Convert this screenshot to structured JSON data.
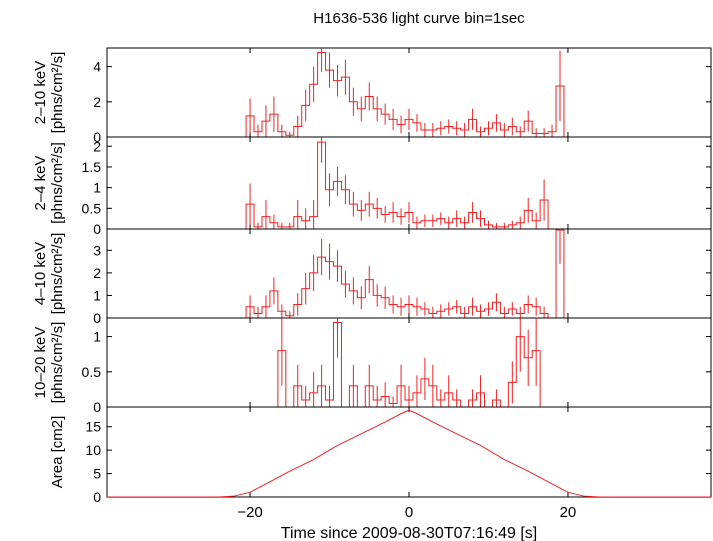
{
  "title": "H1636-536 light curve bin=1sec",
  "xlabel": "Time since 2009-08-30T07:16:49 [s]",
  "colors": {
    "data": "#ee2222",
    "axis": "#000000"
  },
  "chart_data": {
    "type": "line",
    "title": "H1636-536 light curve bin=1sec",
    "xlabel": "Time since 2009-08-30T07:16:49 [s]",
    "xlim": [
      -38,
      38
    ],
    "xticks": [
      -20,
      0,
      20
    ],
    "panels": [
      {
        "ylabel": "2–10 keV\n[phns/cm²/s]",
        "ylim": [
          0,
          5
        ],
        "yticks": [
          0,
          2,
          4
        ],
        "series": [
          {
            "style": "step-with-errorbars",
            "x": [
              -21,
              -20,
              -19,
              -18,
              -17,
              -16,
              -15,
              -14,
              -13,
              -12,
              -11,
              -10,
              -9,
              -8,
              -7,
              -6,
              -5,
              -4,
              -3,
              -2,
              -1,
              0,
              1,
              2,
              3,
              4,
              5,
              6,
              7,
              8,
              9,
              10,
              11,
              12,
              13,
              14,
              15,
              16,
              17,
              18,
              19
            ],
            "y": [
              0.0,
              1.2,
              0.3,
              0.9,
              1.3,
              0.3,
              0.1,
              0.6,
              1.8,
              3.0,
              4.8,
              3.8,
              3.2,
              3.4,
              2.0,
              1.6,
              2.3,
              1.6,
              1.3,
              1.0,
              0.7,
              1.0,
              0.8,
              0.4,
              0.4,
              0.5,
              0.6,
              0.5,
              0.4,
              1.0,
              0.3,
              0.5,
              0.8,
              0.4,
              0.6,
              0.3,
              0.9,
              0.2,
              0.2,
              0.3,
              2.9
            ],
            "yerr": [
              0,
              1.0,
              0.4,
              0.9,
              1.0,
              0.4,
              0.2,
              0.6,
              0.9,
              1.0,
              1.1,
              1.0,
              0.9,
              1.0,
              0.8,
              0.7,
              0.8,
              0.7,
              0.6,
              0.6,
              0.5,
              0.6,
              0.5,
              0.4,
              0.4,
              0.4,
              0.4,
              0.4,
              0.4,
              0.6,
              0.3,
              0.4,
              0.5,
              0.4,
              0.5,
              0.3,
              0.6,
              0.3,
              0.3,
              0.4,
              2.0
            ]
          },
          {
            "style": "smooth",
            "x": [
              -21,
              21
            ],
            "y": [
              0.0,
              0.0
            ]
          }
        ]
      },
      {
        "ylabel": "2–4 keV\n[phns/cm²/s]",
        "ylim": [
          0,
          2.2
        ],
        "yticks": [
          0,
          0.5,
          1,
          1.5,
          2
        ],
        "series": [
          {
            "style": "step-with-errorbars",
            "x": [
              -21,
              -20,
              -19,
              -18,
              -17,
              -16,
              -15,
              -14,
              -13,
              -12,
              -11,
              -10,
              -9,
              -8,
              -7,
              -6,
              -5,
              -4,
              -3,
              -2,
              -1,
              0,
              1,
              2,
              3,
              4,
              5,
              6,
              7,
              8,
              9,
              10,
              11,
              12,
              13,
              14,
              15,
              16,
              17,
              18,
              19
            ],
            "y": [
              0.0,
              0.6,
              0.05,
              0.3,
              0.15,
              0.05,
              0.05,
              0.3,
              0.2,
              0.3,
              2.1,
              0.95,
              1.15,
              0.95,
              0.6,
              0.45,
              0.6,
              0.5,
              0.35,
              0.4,
              0.3,
              0.4,
              0.15,
              0.2,
              0.2,
              0.25,
              0.15,
              0.25,
              0.15,
              0.4,
              0.25,
              0.1,
              0.05,
              0.05,
              0.1,
              0.15,
              0.45,
              0.2,
              0.7,
              0.0,
              0.0
            ],
            "yerr": [
              0,
              0.5,
              0.1,
              0.4,
              0.2,
              0.1,
              0.1,
              0.4,
              0.3,
              0.4,
              0.5,
              0.4,
              0.35,
              0.35,
              0.3,
              0.25,
              0.3,
              0.25,
              0.2,
              0.25,
              0.2,
              0.25,
              0.15,
              0.15,
              0.15,
              0.15,
              0.15,
              0.2,
              0.15,
              0.25,
              0.2,
              0.1,
              0.1,
              0.1,
              0.1,
              0.15,
              0.3,
              0.2,
              0.5,
              0,
              0
            ]
          }
        ]
      },
      {
        "ylabel": "4–10 keV\n[phns/cm²/s]",
        "ylim": [
          0,
          3.9
        ],
        "yticks": [
          0,
          1,
          2,
          3
        ],
        "series": [
          {
            "style": "step-with-errorbars",
            "x": [
              -21,
              -20,
              -19,
              -18,
              -17,
              -16,
              -15,
              -14,
              -13,
              -12,
              -11,
              -10,
              -9,
              -8,
              -7,
              -6,
              -5,
              -4,
              -3,
              -2,
              -1,
              0,
              1,
              2,
              3,
              4,
              5,
              6,
              7,
              8,
              9,
              10,
              11,
              12,
              13,
              14,
              15,
              16,
              17,
              18,
              19
            ],
            "y": [
              0.0,
              0.5,
              0.2,
              0.5,
              1.2,
              0.3,
              0.1,
              0.6,
              1.3,
              2.0,
              2.7,
              2.5,
              2.3,
              1.5,
              1.2,
              0.9,
              1.7,
              1.0,
              0.9,
              0.6,
              0.5,
              0.6,
              0.5,
              0.4,
              0.2,
              0.3,
              0.4,
              0.5,
              0.2,
              0.5,
              0.3,
              0.4,
              0.7,
              0.2,
              0.4,
              0.2,
              0.6,
              0.5,
              0.2,
              0.0,
              3.9
            ],
            "yerr": [
              0,
              0.5,
              0.3,
              0.5,
              0.6,
              0.3,
              0.2,
              0.5,
              0.7,
              0.8,
              0.8,
              0.8,
              0.7,
              0.6,
              0.6,
              0.5,
              0.6,
              0.5,
              0.5,
              0.4,
              0.4,
              0.4,
              0.4,
              0.3,
              0.3,
              0.3,
              0.3,
              0.3,
              0.3,
              0.4,
              0.3,
              0.3,
              0.4,
              0.3,
              0.3,
              0.3,
              0.4,
              0.4,
              0.3,
              0,
              1.5
            ]
          }
        ]
      },
      {
        "ylabel": "10–20 keV\n[phns/cm²/s]",
        "ylim": [
          0,
          1.25
        ],
        "yticks": [
          0,
          0.5,
          1
        ],
        "series": [
          {
            "style": "step-with-errorbars",
            "x": [
              -21,
              -20,
              -19,
              -18,
              -17,
              -16,
              -15,
              -14,
              -13,
              -12,
              -11,
              -10,
              -9,
              -8,
              -7,
              -6,
              -5,
              -4,
              -3,
              -2,
              -1,
              0,
              1,
              2,
              3,
              4,
              5,
              6,
              7,
              8,
              9,
              10,
              11,
              12,
              13,
              14,
              15,
              16,
              17,
              18,
              19
            ],
            "y": [
              0.0,
              0.0,
              0.0,
              0.0,
              0.0,
              0.8,
              0.0,
              0.3,
              0.1,
              0.2,
              0.3,
              0.1,
              1.2,
              0.0,
              0.3,
              0.0,
              0.3,
              0.1,
              0.15,
              0.05,
              0.3,
              0.1,
              0.2,
              0.4,
              0.3,
              0.1,
              0.2,
              0.1,
              0.0,
              0.1,
              0.2,
              0.0,
              0.1,
              0.0,
              0.35,
              1.0,
              0.7,
              0.8,
              0.0,
              0.0,
              0.0
            ],
            "yerr": [
              0,
              0,
              0,
              0,
              0,
              0.5,
              0,
              0.3,
              0.2,
              0.3,
              0.3,
              0.2,
              0.5,
              0,
              0.3,
              0,
              0.3,
              0.2,
              0.2,
              0.1,
              0.3,
              0.2,
              0.25,
              0.3,
              0.3,
              0.15,
              0.25,
              0.15,
              0,
              0.15,
              0.25,
              0,
              0.15,
              0,
              0.3,
              0.5,
              0.4,
              0.5,
              0,
              0,
              0
            ]
          }
        ]
      },
      {
        "ylabel": "Area [cm2]",
        "ylim": [
          0,
          19
        ],
        "yticks": [
          0,
          5,
          10,
          15
        ],
        "series": [
          {
            "style": "smooth",
            "x": [
              -38,
              -24,
              -22,
              -20,
              -18,
              -15,
              -12,
              -9,
              -6,
              -3,
              -1,
              0,
              1,
              3,
              6,
              9,
              12,
              15,
              18,
              20,
              22,
              24,
              38
            ],
            "y": [
              0,
              0,
              0.2,
              1.0,
              2.8,
              5.5,
              8.0,
              11.0,
              13.5,
              16.0,
              17.8,
              18.5,
              17.8,
              16.0,
              13.5,
              11.0,
              8.0,
              5.5,
              2.8,
              1.0,
              0.2,
              0,
              0
            ]
          }
        ]
      }
    ]
  }
}
